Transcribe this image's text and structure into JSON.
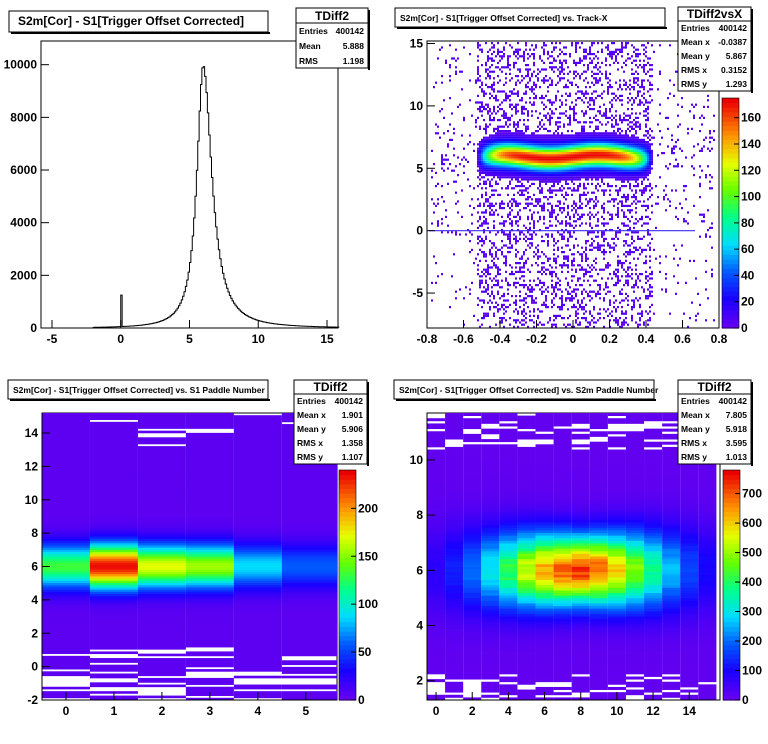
{
  "chart_data": [
    {
      "type": "histogram",
      "title": "S2m[Cor] - S1[Trigger Offset Corrected]",
      "stats": {
        "name": "TDiff2",
        "rows": [
          [
            "Entries",
            "400142"
          ],
          [
            "Mean",
            "5.888"
          ],
          [
            "RMS",
            "1.198"
          ]
        ]
      },
      "xlim": [
        -5.8,
        15.8
      ],
      "ylim": [
        0,
        10900
      ],
      "xticks": [
        -5,
        0,
        5,
        10,
        15
      ],
      "yticks": [
        0,
        2000,
        4000,
        6000,
        8000,
        10000
      ],
      "peak": {
        "x": 6.0,
        "y": 10000,
        "sigma_left": 0.55,
        "sigma_right": 0.75
      },
      "spike": {
        "x": 0.0,
        "y": 1250
      },
      "line_color": "#000000"
    },
    {
      "type": "heatmap",
      "title": "S2m[Cor] - S1[Trigger Offset Corrected] vs. Track-X",
      "stats": {
        "name": "TDiff2vsX",
        "rows": [
          [
            "Entries",
            "400142"
          ],
          [
            "Mean x",
            "-0.0387"
          ],
          [
            "Mean y",
            "5.867"
          ],
          [
            "RMS x",
            "0.3152"
          ],
          [
            "RMS y",
            "1.293"
          ]
        ]
      },
      "xlim": [
        -0.8,
        0.8
      ],
      "ylim": [
        -7.8,
        15.2
      ],
      "xticks": [
        -0.8,
        -0.6,
        -0.4,
        -0.2,
        0,
        0.2,
        0.4,
        0.6,
        0.8
      ],
      "xtick_labels": [
        "-0.8",
        "-0.6",
        "-0.4",
        "-0.2",
        "0",
        "0.2",
        "0.4",
        "0.6",
        "0.8"
      ],
      "yticks": [
        -5,
        0,
        5,
        10,
        15
      ],
      "zticks": [
        0,
        20,
        40,
        60,
        80,
        100,
        120,
        140,
        160
      ],
      "ztick_labels": [
        "0",
        "20",
        "40",
        "60",
        "80",
        "100",
        "120",
        "140",
        "160"
      ],
      "zmax": 175,
      "zero_line_y": 0,
      "band": {
        "x_center": -0.05,
        "x_halfwidth": 0.48,
        "y_center": 6.0,
        "sigma_y": 0.6,
        "peak_z": 170
      }
    },
    {
      "type": "heatmap",
      "title": "S2m[Cor] - S1[Trigger Offset Corrected] vs. S1 Paddle Number",
      "stats": {
        "name": "TDiff2",
        "rows": [
          [
            "Entries",
            "400142"
          ],
          [
            "Mean x",
            "1.901"
          ],
          [
            "Mean y",
            "5.906"
          ],
          [
            "RMS x",
            "1.358"
          ],
          [
            "RMS y",
            "1.107"
          ]
        ]
      },
      "xlim": [
        -0.5,
        5.65
      ],
      "ylim": [
        -2,
        15.2
      ],
      "xticks": [
        0,
        1,
        2,
        3,
        4,
        5
      ],
      "yticks": [
        -2,
        0,
        2,
        4,
        6,
        8,
        10,
        12,
        14
      ],
      "zticks": [
        0,
        50,
        100,
        150,
        200
      ],
      "ztick_labels": [
        "0",
        "50",
        "100",
        "150",
        "200"
      ],
      "zmax": 240,
      "columns": [
        {
          "x0": -0.5,
          "x1": 0.5,
          "peak": 130
        },
        {
          "x0": 0.5,
          "x1": 1.5,
          "peak": 235
        },
        {
          "x0": 1.5,
          "x1": 2.5,
          "peak": 170
        },
        {
          "x0": 2.5,
          "x1": 3.5,
          "peak": 155
        },
        {
          "x0": 3.5,
          "x1": 4.5,
          "peak": 85
        },
        {
          "x0": 4.5,
          "x1": 5.65,
          "peak": 55
        }
      ],
      "y_center": 6.0,
      "sigma_y": 0.9
    },
    {
      "type": "heatmap",
      "title": "S2m[Cor] - S1[Trigger Offset Corrected] vs. S2m Paddle Number",
      "stats": {
        "name": "TDiff2",
        "rows": [
          [
            "Entries",
            "400142"
          ],
          [
            "Mean x",
            "7.805"
          ],
          [
            "Mean y",
            "5.918"
          ],
          [
            "RMS x",
            "3.595"
          ],
          [
            "RMS y",
            "1.013"
          ]
        ]
      },
      "xlim": [
        -0.5,
        15.7
      ],
      "ylim": [
        1.3,
        11.7
      ],
      "xticks": [
        0,
        2,
        4,
        6,
        8,
        10,
        12,
        14
      ],
      "yticks": [
        2,
        4,
        6,
        8,
        10
      ],
      "zticks": [
        0,
        100,
        200,
        300,
        400,
        500,
        600,
        700
      ],
      "ztick_labels": [
        "0",
        "100",
        "200",
        "300",
        "400",
        "500",
        "600",
        "700"
      ],
      "zmax": 780,
      "x_center": 7.8,
      "sigma_x": 3.6,
      "peak_z": 770,
      "y_center": 6.0,
      "sigma_y": 0.85
    }
  ]
}
